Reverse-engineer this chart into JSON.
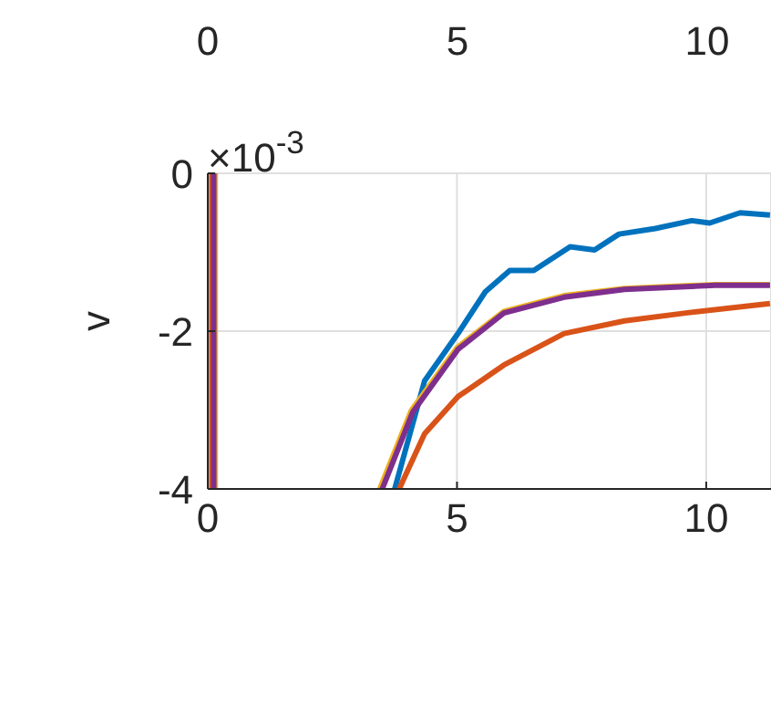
{
  "chart_data": [
    {
      "type": "other",
      "annotations": [
        "0",
        "5",
        "10"
      ]
    },
    {
      "type": "line",
      "ylabel": "v",
      "annotations": [
        "×10$^{-3}$"
      ],
      "xlim": [
        0,
        11.3
      ],
      "xticks": [
        0,
        5,
        10
      ],
      "ylim": [
        -4,
        0
      ],
      "yticks": [
        0,
        -2,
        -4
      ],
      "grid": true,
      "series": [
        {
          "color": "#0072bd",
          "x": [
            3.75,
            4.35,
            5.02,
            5.57,
            6.06,
            6.54,
            7.27,
            7.76,
            8.25,
            8.98,
            9.71,
            10.07,
            10.68,
            11.28
          ],
          "values": [
            -4,
            -2.63,
            -2.03,
            -1.5,
            -1.23,
            -1.23,
            -0.93,
            -0.97,
            -0.77,
            -0.7,
            -0.6,
            -0.63,
            -0.5,
            -0.53
          ]
        },
        {
          "color": "#d95319",
          "x": [
            0.08,
            0.08,
            2,
            3.84,
            4.35,
            5.02,
            5.94,
            7.15,
            8.36,
            9.59,
            11.28
          ],
          "values": [
            0,
            -4,
            null,
            -4,
            -3.3,
            -2.83,
            -2.43,
            -2.03,
            -1.87,
            -1.77,
            -1.65
          ]
        },
        {
          "color": "#edb120",
          "x": [
            0.15,
            0.15,
            2,
            3.45,
            4.08,
            5.0,
            5.94,
            7.15,
            8.36,
            10.18,
            11.28
          ],
          "values": [
            0,
            -4,
            null,
            -4,
            -3.01,
            -2.21,
            -1.75,
            -1.55,
            -1.46,
            -1.41,
            -1.41
          ]
        },
        {
          "color": "#7e2f8e",
          "x": [
            0.12,
            0.12,
            2,
            3.5,
            4.11,
            5.02,
            5.94,
            7.15,
            8.36,
            10.18,
            11.28
          ],
          "values": [
            0,
            -4,
            null,
            -4,
            -3.03,
            -2.23,
            -1.77,
            -1.57,
            -1.47,
            -1.42,
            -1.42
          ]
        }
      ]
    }
  ]
}
